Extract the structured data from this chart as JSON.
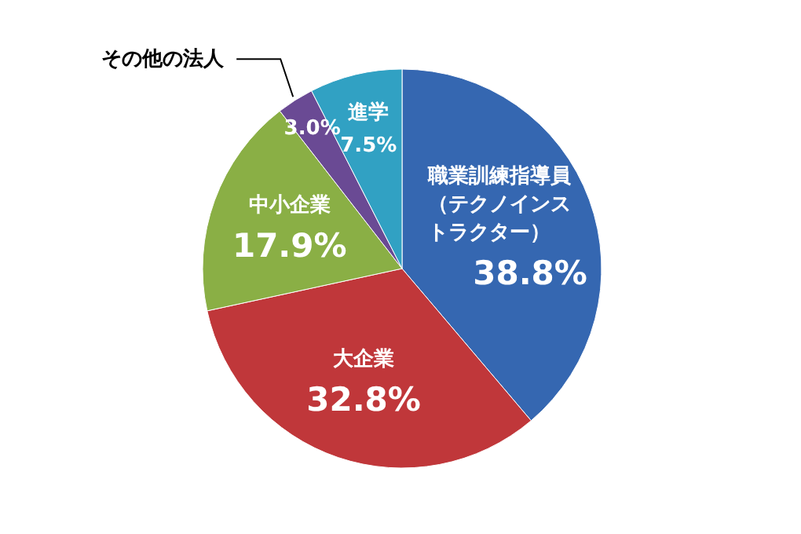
{
  "chart_data": {
    "type": "pie",
    "categories": [
      "職業訓練指導員（テクノインストラクター）",
      "大企業",
      "中小企業",
      "その他の法人",
      "進学"
    ],
    "values": [
      38.8,
      32.8,
      17.9,
      3.0,
      7.5
    ],
    "value_labels": [
      "38.8%",
      "32.8%",
      "17.9%",
      "3.0%",
      "7.5%"
    ],
    "colors": [
      "#3567b1",
      "#c0373a",
      "#8aaf45",
      "#6a4a94",
      "#31a1c3"
    ]
  }
}
